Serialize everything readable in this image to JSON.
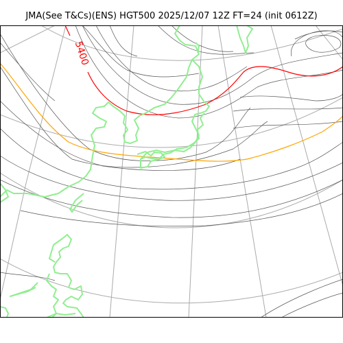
{
  "title": "JMA(See T&Cs)(ENS) HGT500 2025/12/07 12Z FT=24 (init 0612Z)",
  "contour_label": "5400",
  "colors": {
    "coast": "#90ee90",
    "contour": "#555555",
    "grid": "#aaaaaa",
    "highlight_5400": "#ff0000",
    "highlight_5700": "#ffa500"
  }
}
